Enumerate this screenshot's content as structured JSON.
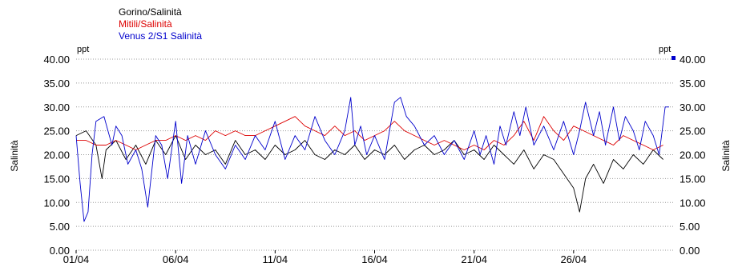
{
  "chart_data": {
    "type": "line",
    "title": "",
    "ylabel_left": "Salinità",
    "ylabel_right": "Salinità",
    "unit_left": "ppt",
    "unit_right": "ppt",
    "ylim": [
      0,
      40
    ],
    "yticks": [
      "0.00",
      "5.00",
      "10.00",
      "15.00",
      "20.00",
      "25.00",
      "30.00",
      "35.00",
      "40.00"
    ],
    "x_range_days": [
      1,
      31
    ],
    "xticks": [
      {
        "label": "01/04",
        "day": 1
      },
      {
        "label": "06/04",
        "day": 6
      },
      {
        "label": "11/04",
        "day": 11
      },
      {
        "label": "16/04",
        "day": 16
      },
      {
        "label": "21/04",
        "day": 21
      },
      {
        "label": "26/04",
        "day": 26
      }
    ],
    "grid": "horizontal-dotted",
    "legend_position": "top-left",
    "series": [
      {
        "name": "Gorino/Salinità",
        "color": "#000000",
        "x": [
          1.0,
          1.5,
          2.0,
          2.3,
          2.5,
          3.0,
          3.5,
          4.0,
          4.5,
          5.0,
          5.5,
          6.0,
          6.5,
          7.0,
          7.5,
          8.0,
          8.5,
          9.0,
          9.5,
          10.0,
          10.5,
          11.0,
          11.5,
          12.0,
          12.5,
          13.0,
          13.5,
          14.0,
          14.5,
          15.0,
          15.5,
          16.0,
          16.5,
          17.0,
          17.5,
          18.0,
          18.5,
          19.0,
          19.5,
          20.0,
          20.5,
          21.0,
          21.5,
          22.0,
          22.5,
          23.0,
          23.5,
          24.0,
          24.5,
          25.0,
          25.5,
          26.0,
          26.3,
          26.6,
          27.0,
          27.5,
          28.0,
          28.5,
          29.0,
          29.5,
          30.0,
          30.5
        ],
        "y": [
          24,
          25,
          22,
          15,
          21,
          23,
          19,
          22,
          18,
          23,
          20,
          24,
          19,
          22,
          20,
          21,
          18,
          23,
          20,
          21,
          19,
          22,
          20,
          21,
          23,
          20,
          19,
          21,
          20,
          22,
          19,
          21,
          20,
          22,
          19,
          21,
          22,
          20,
          21,
          23,
          20,
          21,
          19,
          22,
          20,
          18,
          21,
          17,
          20,
          19,
          16,
          13,
          8,
          15,
          18,
          14,
          19,
          17,
          20,
          18,
          21,
          19
        ]
      },
      {
        "name": "Mitili/Salinità",
        "color": "#dd0000",
        "x": [
          1.0,
          1.5,
          2.0,
          2.5,
          3.0,
          3.5,
          4.0,
          4.5,
          5.0,
          5.5,
          6.0,
          6.5,
          7.0,
          7.5,
          8.0,
          8.5,
          9.0,
          9.5,
          10.0,
          10.5,
          11.0,
          11.5,
          12.0,
          12.5,
          13.0,
          13.5,
          14.0,
          14.5,
          15.0,
          15.5,
          16.0,
          16.5,
          17.0,
          17.5,
          18.0,
          18.5,
          19.0,
          19.5,
          20.0,
          20.5,
          21.0,
          21.5,
          22.0,
          22.5,
          23.0,
          23.5,
          24.0,
          24.5,
          25.0,
          25.5,
          26.0,
          26.5,
          27.0,
          27.5,
          28.0,
          28.5,
          29.0,
          29.5,
          30.0,
          30.5
        ],
        "y": [
          23,
          23,
          22,
          22,
          23,
          22,
          21,
          22,
          23,
          23,
          24,
          23,
          24,
          23,
          25,
          24,
          25,
          24,
          24,
          25,
          26,
          27,
          28,
          26,
          25,
          24,
          26,
          24,
          25,
          23,
          24,
          25,
          27,
          25,
          24,
          23,
          22,
          23,
          22,
          21,
          22,
          21,
          23,
          22,
          24,
          27,
          23,
          28,
          25,
          23,
          26,
          25,
          24,
          23,
          22,
          24,
          23,
          22,
          21,
          22
        ]
      },
      {
        "name": "Venus 2/S1 Salinità",
        "color": "#0000cc",
        "x": [
          1.0,
          1.2,
          1.4,
          1.6,
          1.8,
          2.0,
          2.4,
          2.8,
          3.0,
          3.3,
          3.6,
          4.0,
          4.3,
          4.6,
          5.0,
          5.3,
          5.6,
          6.0,
          6.3,
          6.6,
          7.0,
          7.5,
          8.0,
          8.5,
          9.0,
          9.5,
          10.0,
          10.5,
          11.0,
          11.5,
          12.0,
          12.5,
          13.0,
          13.5,
          14.0,
          14.5,
          14.8,
          15.0,
          15.3,
          15.6,
          16.0,
          16.5,
          17.0,
          17.3,
          17.6,
          18.0,
          18.5,
          19.0,
          19.5,
          20.0,
          20.5,
          21.0,
          21.3,
          21.6,
          22.0,
          22.3,
          22.6,
          23.0,
          23.3,
          23.6,
          24.0,
          24.5,
          25.0,
          25.5,
          26.0,
          26.3,
          26.6,
          27.0,
          27.3,
          27.6,
          28.0,
          28.3,
          28.6,
          29.0,
          29.3,
          29.6,
          30.0,
          30.3,
          30.6,
          30.8
        ],
        "y": [
          24,
          14,
          6,
          8,
          20,
          27,
          28,
          22,
          26,
          24,
          18,
          21,
          17,
          9,
          24,
          22,
          15,
          27,
          14,
          24,
          18,
          25,
          20,
          17,
          22,
          19,
          24,
          21,
          27,
          19,
          24,
          21,
          28,
          23,
          20,
          25,
          32,
          22,
          26,
          20,
          24,
          19,
          31,
          32,
          28,
          26,
          22,
          24,
          20,
          23,
          19,
          25,
          20,
          24,
          18,
          26,
          22,
          29,
          24,
          30,
          22,
          26,
          21,
          27,
          20,
          25,
          31,
          24,
          29,
          22,
          30,
          23,
          28,
          25,
          21,
          27,
          24,
          20,
          30,
          30
        ]
      }
    ]
  }
}
